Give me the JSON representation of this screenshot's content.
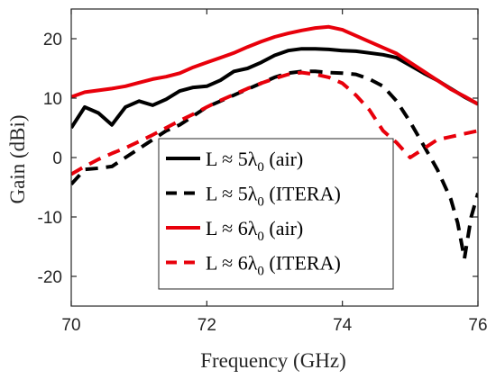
{
  "chart_data": {
    "type": "line",
    "xlabel": "Frequency (GHz)",
    "ylabel": "Gain (dBi)",
    "xlim": [
      70,
      76
    ],
    "ylim": [
      -25,
      25
    ],
    "xticks": [
      70,
      72,
      74,
      76
    ],
    "yticks": [
      20,
      10,
      0,
      -10,
      -20
    ],
    "grid": false,
    "legend_position": "center",
    "series": [
      {
        "name": "L ≈ 5λ0 (air)",
        "legend_main": "L ≈ 5λ",
        "legend_sub": "0",
        "legend_tail": " (air)",
        "color": "#000000",
        "dash": "solid",
        "x": [
          70.0,
          70.2,
          70.4,
          70.6,
          70.8,
          71.0,
          71.2,
          71.4,
          71.6,
          71.8,
          72.0,
          72.2,
          72.4,
          72.6,
          72.8,
          73.0,
          73.2,
          73.4,
          73.6,
          73.8,
          74.0,
          74.2,
          74.4,
          74.6,
          74.8,
          75.0,
          75.2,
          75.4,
          75.6,
          75.8,
          76.0
        ],
        "y": [
          5.0,
          8.5,
          7.5,
          5.5,
          8.5,
          9.5,
          8.8,
          9.8,
          11.2,
          11.8,
          12.0,
          13.0,
          14.5,
          15.0,
          16.0,
          17.2,
          18.0,
          18.3,
          18.3,
          18.2,
          18.0,
          17.9,
          17.6,
          17.3,
          16.8,
          15.5,
          14.2,
          13.0,
          11.6,
          10.2,
          9.0
        ]
      },
      {
        "name": "L ≈ 5λ0 (ITERA)",
        "legend_main": "L ≈ 5λ",
        "legend_sub": "0",
        "legend_tail": " (ITERA)",
        "color": "#000000",
        "dash": "dashed",
        "x": [
          70.0,
          70.2,
          70.4,
          70.6,
          70.8,
          71.0,
          71.2,
          71.4,
          71.6,
          71.8,
          72.0,
          72.2,
          72.4,
          72.6,
          72.8,
          73.0,
          73.2,
          73.4,
          73.6,
          73.8,
          74.0,
          74.2,
          74.4,
          74.6,
          74.8,
          75.0,
          75.2,
          75.4,
          75.6,
          75.7,
          75.8,
          75.9,
          76.0
        ],
        "y": [
          -4.5,
          -2.0,
          -1.8,
          -1.5,
          0.0,
          1.5,
          3.0,
          4.5,
          5.5,
          7.0,
          8.5,
          9.5,
          10.5,
          11.5,
          12.5,
          13.5,
          14.2,
          14.5,
          14.5,
          14.3,
          14.2,
          14.0,
          13.2,
          12.0,
          9.5,
          6.0,
          2.0,
          -2.0,
          -7.0,
          -11.0,
          -17.0,
          -10.0,
          -6.0
        ]
      },
      {
        "name": "L ≈ 6λ0 (air)",
        "legend_main": "L ≈ 6λ",
        "legend_sub": "0",
        "legend_tail": " (air)",
        "color": "#e8000b",
        "dash": "solid",
        "x": [
          70.0,
          70.2,
          70.4,
          70.6,
          70.8,
          71.0,
          71.2,
          71.4,
          71.6,
          71.8,
          72.0,
          72.2,
          72.4,
          72.6,
          72.8,
          73.0,
          73.2,
          73.4,
          73.6,
          73.8,
          74.0,
          74.2,
          74.4,
          74.6,
          74.8,
          75.0,
          75.2,
          75.4,
          75.6,
          75.8,
          76.0
        ],
        "y": [
          10.2,
          11.0,
          11.3,
          11.6,
          12.0,
          12.6,
          13.2,
          13.6,
          14.2,
          15.2,
          16.0,
          16.8,
          17.6,
          18.6,
          19.5,
          20.3,
          20.9,
          21.4,
          21.8,
          22.0,
          21.5,
          20.5,
          19.5,
          18.5,
          17.5,
          16.0,
          14.5,
          13.0,
          11.5,
          10.3,
          9.0
        ]
      },
      {
        "name": "L ≈ 6λ0 (ITERA)",
        "legend_main": "L ≈ 6λ",
        "legend_sub": "0",
        "legend_tail": " (ITERA)",
        "color": "#e8000b",
        "dash": "dashed",
        "x": [
          70.0,
          70.2,
          70.4,
          70.6,
          70.8,
          71.0,
          71.2,
          71.4,
          71.6,
          71.8,
          72.0,
          72.2,
          72.4,
          72.6,
          72.8,
          73.0,
          73.2,
          73.4,
          73.6,
          73.8,
          74.0,
          74.2,
          74.4,
          74.6,
          74.8,
          75.0,
          75.2,
          75.4,
          75.6,
          75.8,
          76.0
        ],
        "y": [
          -2.8,
          -1.5,
          -0.3,
          0.7,
          1.6,
          2.7,
          3.8,
          5.0,
          6.2,
          7.3,
          8.5,
          9.6,
          10.6,
          11.6,
          12.5,
          13.3,
          14.0,
          14.3,
          14.0,
          13.5,
          12.5,
          10.5,
          8.0,
          4.5,
          2.5,
          0.0,
          1.5,
          3.0,
          3.5,
          4.0,
          4.5
        ]
      }
    ]
  }
}
